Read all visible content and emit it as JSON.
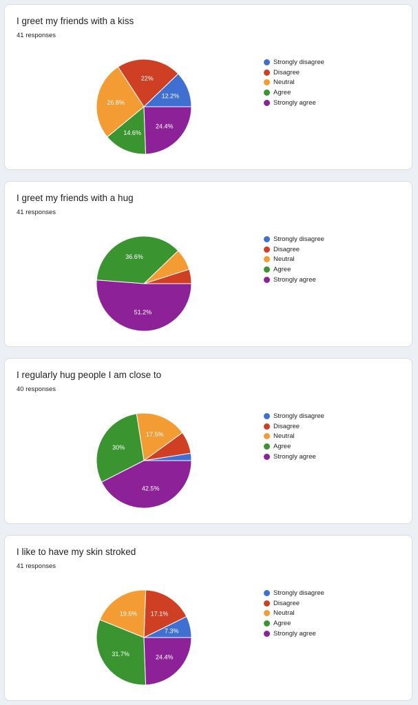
{
  "legend": {
    "labels": [
      "Strongly disagree",
      "Disagree",
      "Neutral",
      "Agree",
      "Strongly agree"
    ],
    "colors": [
      "#3e6fd1",
      "#cf3f24",
      "#f39c33",
      "#3a9530",
      "#8d2197"
    ]
  },
  "cards": [
    {
      "title": "I greet my friends with a kiss",
      "responses": "41 responses"
    },
    {
      "title": "I greet my friends with a hug",
      "responses": "41 responses"
    },
    {
      "title": "I regularly hug people I am close to",
      "responses": "40 responses"
    },
    {
      "title": "I like to have my skin stroked",
      "responses": "41 responses"
    }
  ],
  "chart_data": [
    {
      "type": "pie",
      "title": "I greet my friends with a kiss",
      "categories": [
        "Strongly disagree",
        "Disagree",
        "Neutral",
        "Agree",
        "Strongly agree"
      ],
      "values": [
        12.2,
        22,
        26.8,
        14.6,
        24.4
      ],
      "labels": [
        "12.2%",
        "22%",
        "26.8%",
        "14.6%",
        "24.4%"
      ],
      "legend_position": "right"
    },
    {
      "type": "pie",
      "title": "I greet my friends with a hug",
      "categories": [
        "Strongly disagree",
        "Disagree",
        "Neutral",
        "Agree",
        "Strongly agree"
      ],
      "values": [
        0,
        4.9,
        7.3,
        36.6,
        51.2
      ],
      "labels": [
        "",
        "",
        "",
        "36.6%",
        "51.2%"
      ],
      "legend_position": "right"
    },
    {
      "type": "pie",
      "title": "I regularly hug people I am close to",
      "categories": [
        "Strongly disagree",
        "Disagree",
        "Neutral",
        "Agree",
        "Strongly agree"
      ],
      "values": [
        2.5,
        7.5,
        17.5,
        30,
        42.5
      ],
      "labels": [
        "",
        "",
        "17.5%",
        "30%",
        "42.5%"
      ],
      "legend_position": "right"
    },
    {
      "type": "pie",
      "title": "I like to have my skin stroked",
      "categories": [
        "Strongly disagree",
        "Disagree",
        "Neutral",
        "Agree",
        "Strongly agree"
      ],
      "values": [
        7.3,
        17.1,
        19.5,
        31.7,
        24.4
      ],
      "labels": [
        "7.3%",
        "17.1%",
        "19.5%",
        "31.7%",
        "24.4%"
      ],
      "legend_position": "right"
    }
  ]
}
